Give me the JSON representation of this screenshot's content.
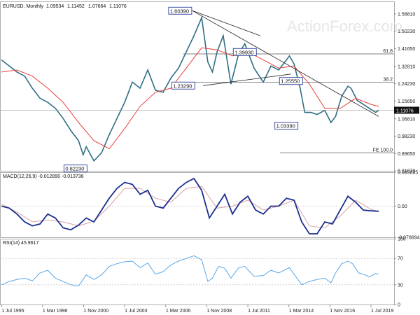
{
  "watermark": "ActionForex.com",
  "colors": {
    "candle": "#2f6f84",
    "ma": "#e8403a",
    "macd": "#1c2e8e",
    "signal": "#d8a3a3",
    "rsi": "#5aa7e8",
    "trend": "#222222",
    "box": "#2a3d9a"
  },
  "chart_data": [
    {
      "type": "line",
      "title": "EURUSD, Monthly",
      "ohlc": [
        "1.09534",
        "1.11452",
        "1.07664",
        "1.11076"
      ],
      "ylim": [
        0.8107,
        1.65
      ],
      "y_ticks": [
        "1.58810",
        "1.50230",
        "1.41650",
        "1.32810",
        "1.24230",
        "1.15650",
        "1.06810",
        "0.98230",
        "0.89650",
        "0.81070"
      ],
      "y_tick_values": [
        1.5881,
        1.5023,
        1.4165,
        1.3281,
        1.2423,
        1.1565,
        1.0681,
        0.9823,
        0.8965,
        0.8107
      ],
      "x_ticks": [
        "1 Jul 1995",
        "1 Mar 1998",
        "1 Nov 2000",
        "1 Jul 2003",
        "1 Mar 2006",
        "1 Nov 2008",
        "1 Jul 2011",
        "1 Mar 2014",
        "1 Nov 2016",
        "1 Jul 2019"
      ],
      "x_tick_values": [
        1995.5,
        1998.17,
        2000.83,
        2003.5,
        2006.17,
        2008.83,
        2011.5,
        2014.17,
        2016.83,
        2019.5
      ],
      "xlim": [
        1995.4,
        2021.0
      ],
      "series": [
        {
          "points": [
            [
              1995.5,
              1.36
            ],
            [
              1996.0,
              1.33
            ],
            [
              1996.5,
              1.3
            ],
            [
              1997.0,
              1.28
            ],
            [
              1997.5,
              1.22
            ],
            [
              1998.0,
              1.17
            ],
            [
              1998.5,
              1.15
            ],
            [
              1999.0,
              1.12
            ],
            [
              1999.5,
              1.07
            ],
            [
              2000.0,
              1.01
            ],
            [
              2000.5,
              0.96
            ],
            [
              2000.8,
              0.89
            ],
            [
              2001.0,
              0.93
            ],
            [
              2001.5,
              0.86
            ],
            [
              2002.0,
              0.9
            ],
            [
              2002.5,
              0.99
            ],
            [
              2003.0,
              1.07
            ],
            [
              2003.5,
              1.15
            ],
            [
              2004.0,
              1.25
            ],
            [
              2004.5,
              1.22
            ],
            [
              2005.0,
              1.31
            ],
            [
              2005.5,
              1.21
            ],
            [
              2006.0,
              1.2
            ],
            [
              2006.5,
              1.27
            ],
            [
              2007.0,
              1.32
            ],
            [
              2007.5,
              1.4
            ],
            [
              2008.0,
              1.48
            ],
            [
              2008.5,
              1.57
            ],
            [
              2008.9,
              1.35
            ],
            [
              2009.2,
              1.3
            ],
            [
              2009.5,
              1.4
            ],
            [
              2009.9,
              1.48
            ],
            [
              2010.4,
              1.24
            ],
            [
              2010.9,
              1.39
            ],
            [
              2011.3,
              1.44
            ],
            [
              2011.9,
              1.32
            ],
            [
              2012.5,
              1.25
            ],
            [
              2013.0,
              1.33
            ],
            [
              2013.5,
              1.31
            ],
            [
              2014.2,
              1.38
            ],
            [
              2014.5,
              1.34
            ],
            [
              2014.9,
              1.22
            ],
            [
              2015.2,
              1.1
            ],
            [
              2015.6,
              1.1
            ],
            [
              2016.0,
              1.09
            ],
            [
              2016.5,
              1.11
            ],
            [
              2016.9,
              1.05
            ],
            [
              2017.2,
              1.08
            ],
            [
              2017.6,
              1.18
            ],
            [
              2018.0,
              1.23
            ],
            [
              2018.2,
              1.22
            ],
            [
              2018.6,
              1.16
            ],
            [
              2019.0,
              1.14
            ],
            [
              2019.4,
              1.12
            ],
            [
              2019.8,
              1.1
            ],
            [
              2020.0,
              1.11
            ]
          ]
        },
        {
          "points": [
            [
              1995.5,
              1.3
            ],
            [
              1996.5,
              1.31
            ],
            [
              1997.5,
              1.28
            ],
            [
              1998.5,
              1.22
            ],
            [
              1999.5,
              1.15
            ],
            [
              2000.5,
              1.05
            ],
            [
              2001.5,
              0.96
            ],
            [
              2002.5,
              0.92
            ],
            [
              2003.5,
              1.02
            ],
            [
              2004.5,
              1.13
            ],
            [
              2005.5,
              1.2
            ],
            [
              2006.5,
              1.22
            ],
            [
              2007.5,
              1.32
            ],
            [
              2008.5,
              1.42
            ],
            [
              2009.5,
              1.41
            ],
            [
              2010.5,
              1.38
            ],
            [
              2011.5,
              1.4
            ],
            [
              2012.5,
              1.36
            ],
            [
              2013.5,
              1.32
            ],
            [
              2014.5,
              1.33
            ],
            [
              2015.5,
              1.24
            ],
            [
              2016.5,
              1.12
            ],
            [
              2017.5,
              1.12
            ],
            [
              2018.5,
              1.17
            ],
            [
              2019.5,
              1.14
            ],
            [
              2020.0,
              1.13
            ]
          ]
        },
        {
          "points": [
            [
              2007.9,
              1.6039
            ],
            [
              2012.3,
              1.48
            ]
          ]
        },
        {
          "points": [
            [
              2007.9,
              1.6039
            ],
            [
              2020.0,
              1.08
            ]
          ]
        },
        {
          "points": [
            [
              2008.6,
              1.2329
            ],
            [
              2014.3,
              1.29
            ]
          ]
        }
      ],
      "horizontal_levels": [
        {
          "label": "61.8",
          "value": 1.39
        },
        {
          "label": "38.2",
          "value": 1.25
        },
        {
          "label": "FE 100.0",
          "value": 0.9
        }
      ],
      "current_value": "1.11076",
      "annotations": [
        "1.60390",
        "1.39930",
        "1.25550",
        "1.23290",
        "1.03390",
        "0.82230"
      ]
    },
    {
      "type": "line",
      "title": "MACD(12,26,9) -0.012890 -0.013736",
      "ylim": [
        -0.0789,
        0.0859
      ],
      "y_ticks": [
        "0.085885",
        "0.00",
        "-0.078894"
      ],
      "y_tick_values": [
        0.085885,
        0,
        -0.078894
      ],
      "series": [
        {
          "points": [
            [
              1995.5,
              0.0
            ],
            [
              1996.0,
              -0.005
            ],
            [
              1996.5,
              -0.02
            ],
            [
              1997.0,
              -0.04
            ],
            [
              1997.5,
              -0.05
            ],
            [
              1998.0,
              -0.045
            ],
            [
              1998.5,
              -0.02
            ],
            [
              1999.0,
              -0.03
            ],
            [
              1999.5,
              -0.055
            ],
            [
              2000.0,
              -0.06
            ],
            [
              2000.5,
              -0.048
            ],
            [
              2001.0,
              -0.03
            ],
            [
              2001.5,
              -0.04
            ],
            [
              2002.0,
              -0.01
            ],
            [
              2002.5,
              0.02
            ],
            [
              2003.0,
              0.045
            ],
            [
              2003.5,
              0.06
            ],
            [
              2004.0,
              0.055
            ],
            [
              2004.5,
              0.03
            ],
            [
              2005.0,
              0.04
            ],
            [
              2005.5,
              0.0
            ],
            [
              2006.0,
              -0.005
            ],
            [
              2006.5,
              0.02
            ],
            [
              2007.0,
              0.045
            ],
            [
              2007.5,
              0.06
            ],
            [
              2008.0,
              0.07
            ],
            [
              2008.5,
              0.04
            ],
            [
              2009.0,
              -0.03
            ],
            [
              2009.5,
              0.0
            ],
            [
              2010.0,
              0.03
            ],
            [
              2010.5,
              -0.02
            ],
            [
              2011.0,
              0.01
            ],
            [
              2011.5,
              0.025
            ],
            [
              2012.0,
              -0.01
            ],
            [
              2012.5,
              -0.02
            ],
            [
              2013.0,
              0.0
            ],
            [
              2013.5,
              0.0
            ],
            [
              2014.0,
              0.02
            ],
            [
              2014.5,
              0.015
            ],
            [
              2015.0,
              -0.04
            ],
            [
              2015.5,
              -0.07
            ],
            [
              2016.0,
              -0.07
            ],
            [
              2016.5,
              -0.04
            ],
            [
              2017.0,
              -0.045
            ],
            [
              2017.5,
              -0.01
            ],
            [
              2018.0,
              0.025
            ],
            [
              2018.5,
              0.01
            ],
            [
              2019.0,
              -0.01
            ],
            [
              2019.5,
              -0.012
            ],
            [
              2020.0,
              -0.013
            ]
          ]
        },
        {
          "points": [
            [
              1995.5,
              0.005
            ],
            [
              1996.5,
              -0.015
            ],
            [
              1997.5,
              -0.04
            ],
            [
              1998.5,
              -0.035
            ],
            [
              1999.5,
              -0.04
            ],
            [
              2000.5,
              -0.05
            ],
            [
              2001.5,
              -0.038
            ],
            [
              2002.5,
              0.0
            ],
            [
              2003.5,
              0.045
            ],
            [
              2004.5,
              0.045
            ],
            [
              2005.5,
              0.02
            ],
            [
              2006.5,
              0.01
            ],
            [
              2007.5,
              0.045
            ],
            [
              2008.5,
              0.05
            ],
            [
              2009.5,
              -0.005
            ],
            [
              2010.5,
              0.0
            ],
            [
              2011.5,
              0.015
            ],
            [
              2012.5,
              -0.01
            ],
            [
              2013.5,
              0.0
            ],
            [
              2014.5,
              0.015
            ],
            [
              2015.5,
              -0.05
            ],
            [
              2016.5,
              -0.055
            ],
            [
              2017.5,
              -0.025
            ],
            [
              2018.5,
              0.015
            ],
            [
              2019.5,
              -0.008
            ],
            [
              2020.0,
              -0.0137
            ]
          ]
        }
      ]
    },
    {
      "type": "line",
      "title": "RSI(14) 45.9617",
      "ylim": [
        0,
        100
      ],
      "y_ticks": [
        "100",
        "70",
        "30",
        "0"
      ],
      "y_tick_values": [
        100,
        70,
        30,
        0
      ],
      "series": [
        {
          "points": [
            [
              1995.5,
              30
            ],
            [
              1996.0,
              35
            ],
            [
              1996.5,
              38
            ],
            [
              1997.0,
              40
            ],
            [
              1997.5,
              36
            ],
            [
              1998.0,
              48
            ],
            [
              1998.5,
              52
            ],
            [
              1999.0,
              40
            ],
            [
              1999.5,
              35
            ],
            [
              2000.0,
              30
            ],
            [
              2000.5,
              28
            ],
            [
              2001.0,
              45
            ],
            [
              2001.5,
              38
            ],
            [
              2002.0,
              45
            ],
            [
              2002.5,
              58
            ],
            [
              2003.0,
              62
            ],
            [
              2003.5,
              65
            ],
            [
              2004.0,
              66
            ],
            [
              2004.5,
              56
            ],
            [
              2005.0,
              63
            ],
            [
              2005.5,
              46
            ],
            [
              2006.0,
              50
            ],
            [
              2006.5,
              60
            ],
            [
              2007.0,
              66
            ],
            [
              2007.5,
              70
            ],
            [
              2008.0,
              74
            ],
            [
              2008.5,
              68
            ],
            [
              2008.9,
              35
            ],
            [
              2009.2,
              40
            ],
            [
              2009.6,
              58
            ],
            [
              2010.0,
              55
            ],
            [
              2010.4,
              40
            ],
            [
              2010.9,
              56
            ],
            [
              2011.3,
              58
            ],
            [
              2011.9,
              43
            ],
            [
              2012.5,
              44
            ],
            [
              2013.0,
              52
            ],
            [
              2013.5,
              48
            ],
            [
              2014.2,
              56
            ],
            [
              2014.5,
              46
            ],
            [
              2015.0,
              30
            ],
            [
              2015.5,
              35
            ],
            [
              2016.0,
              38
            ],
            [
              2016.5,
              40
            ],
            [
              2016.9,
              33
            ],
            [
              2017.2,
              48
            ],
            [
              2017.6,
              62
            ],
            [
              2018.0,
              66
            ],
            [
              2018.3,
              62
            ],
            [
              2018.7,
              48
            ],
            [
              2019.0,
              46
            ],
            [
              2019.4,
              42
            ],
            [
              2019.8,
              47
            ],
            [
              2020.0,
              46
            ]
          ]
        }
      ]
    }
  ]
}
